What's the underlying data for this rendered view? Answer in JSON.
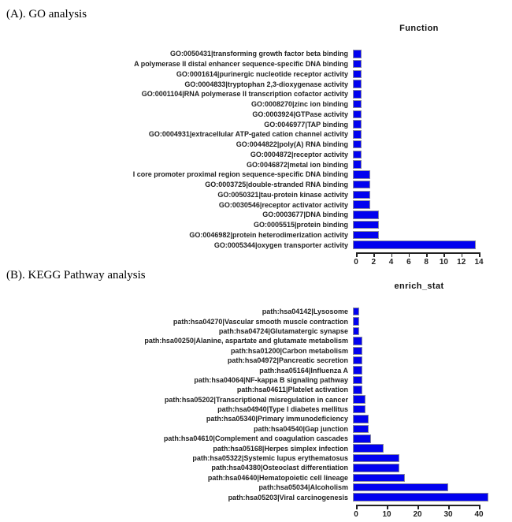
{
  "page": {
    "background": "#ffffff"
  },
  "sections": [
    {
      "heading": "(A). GO analysis"
    },
    {
      "heading": "(B). KEGG Pathway analysis"
    }
  ],
  "chart_data": [
    {
      "type": "bar",
      "orientation": "horizontal",
      "title": "Function",
      "bar_color": "#0101ef",
      "bar_border_color": "#8888a0",
      "grid": false,
      "legend": false,
      "xlim": [
        0,
        14
      ],
      "x_ticks": [
        0,
        2,
        4,
        6,
        8,
        10,
        12,
        14
      ],
      "categories": [
        "GO:0050431|transforming growth factor beta binding",
        "A polymerase II distal enhancer sequence-specific DNA binding",
        "GO:0001614|purinergic nucleotide receptor activity",
        "GO:0004833|tryptophan 2,3-dioxygenase activity",
        "GO:0001104|RNA polymerase II transcription cofactor activity",
        "GO:0008270|zinc ion binding",
        "GO:0003924|GTPase activity",
        "GO:0046977|TAP binding",
        "GO:0004931|extracellular ATP-gated cation channel activity",
        "GO:0044822|poly(A) RNA binding",
        "GO:0004872|receptor activity",
        "GO:0046872|metal ion binding",
        "I core promoter proximal region sequence-specific DNA binding",
        "GO:0003725|double-stranded RNA binding",
        "GO:0050321|tau-protein kinase activity",
        "GO:0030546|receptor activator activity",
        "GO:0003677|DNA binding",
        "GO:0005515|protein binding",
        "GO:0046982|protein heterodimerization activity",
        "GO:0005344|oxygen transporter activity"
      ],
      "values": [
        1,
        1,
        1,
        1,
        1,
        1,
        1,
        1,
        1,
        1,
        1,
        1,
        2,
        2,
        2,
        2,
        3,
        3,
        3,
        14
      ]
    },
    {
      "type": "bar",
      "orientation": "horizontal",
      "title": "enrich_stat",
      "bar_color": "#0101ef",
      "bar_border_color": "#8888a0",
      "grid": false,
      "legend": false,
      "xlim": [
        0,
        45
      ],
      "x_ticks": [
        0,
        10,
        20,
        30,
        40
      ],
      "categories": [
        "path:hsa04142|Lysosome",
        "path:hsa04270|Vascular smooth muscle contraction",
        "path:hsa04724|Glutamatergic synapse",
        "path:hsa00250|Alanine, aspartate and glutamate metabolism",
        "path:hsa01200|Carbon metabolism",
        "path:hsa04972|Pancreatic secretion",
        "path:hsa05164|Influenza A",
        "path:hsa04064|NF-kappa B signaling pathway",
        "path:hsa04611|Platelet activation",
        "path:hsa05202|Transcriptional misregulation in cancer",
        "path:hsa04940|Type I diabetes mellitus",
        "path:hsa05340|Primary immunodeficiency",
        "path:hsa04540|Gap junction",
        "path:hsa04610|Complement and coagulation cascades",
        "path:hsa05168|Herpes simplex infection",
        "path:hsa05322|Systemic lupus erythematosus",
        "path:hsa04380|Osteoclast differentiation",
        "path:hsa04640|Hematopoietic cell lineage",
        "path:hsa05034|Alcoholism",
        "path:hsa05203|Viral carcinogenesis"
      ],
      "values": [
        2,
        2,
        2,
        3,
        3,
        3,
        3,
        3,
        3,
        4,
        4,
        5,
        5,
        6,
        10,
        15,
        15,
        17,
        31,
        44
      ]
    }
  ]
}
